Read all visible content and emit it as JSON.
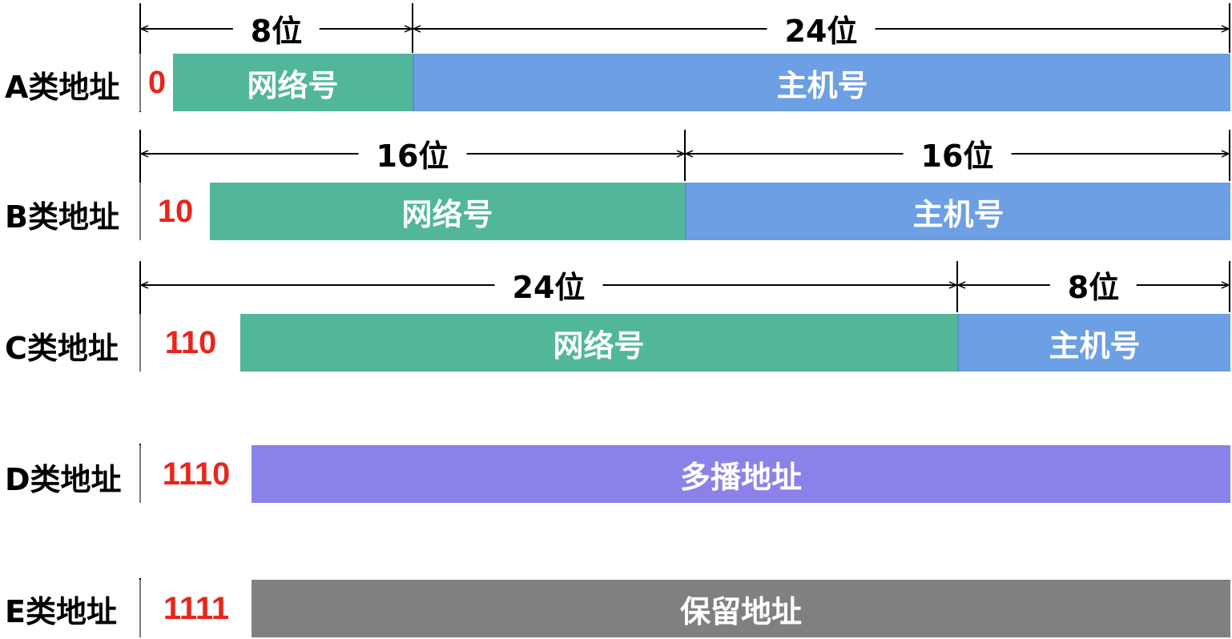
{
  "rows": [
    {
      "label": "A类地址",
      "prefix": "0",
      "segments": [
        {
          "kind": "net",
          "text": "网络号"
        },
        {
          "kind": "host",
          "text": "主机号"
        }
      ],
      "dims": [
        "8位",
        "24位"
      ]
    },
    {
      "label": "B类地址",
      "prefix": "10",
      "segments": [
        {
          "kind": "net",
          "text": "网络号"
        },
        {
          "kind": "host",
          "text": "主机号"
        }
      ],
      "dims": [
        "16位",
        "16位"
      ]
    },
    {
      "label": "C类地址",
      "prefix": "110",
      "segments": [
        {
          "kind": "net",
          "text": "网络号"
        },
        {
          "kind": "host",
          "text": "主机号"
        }
      ],
      "dims": [
        "24位",
        "8位"
      ]
    },
    {
      "label": "D类地址",
      "prefix": "1110",
      "segments": [
        {
          "kind": "mcast",
          "text": "多播地址"
        }
      ]
    },
    {
      "label": "E类地址",
      "prefix": "1111",
      "segments": [
        {
          "kind": "resv",
          "text": "保留地址"
        }
      ]
    }
  ],
  "colors": {
    "net": "#52b79a",
    "host": "#6c9fe3",
    "multicast": "#8a82e8",
    "reserved": "#808080",
    "prefix_text": "#e8261d"
  }
}
